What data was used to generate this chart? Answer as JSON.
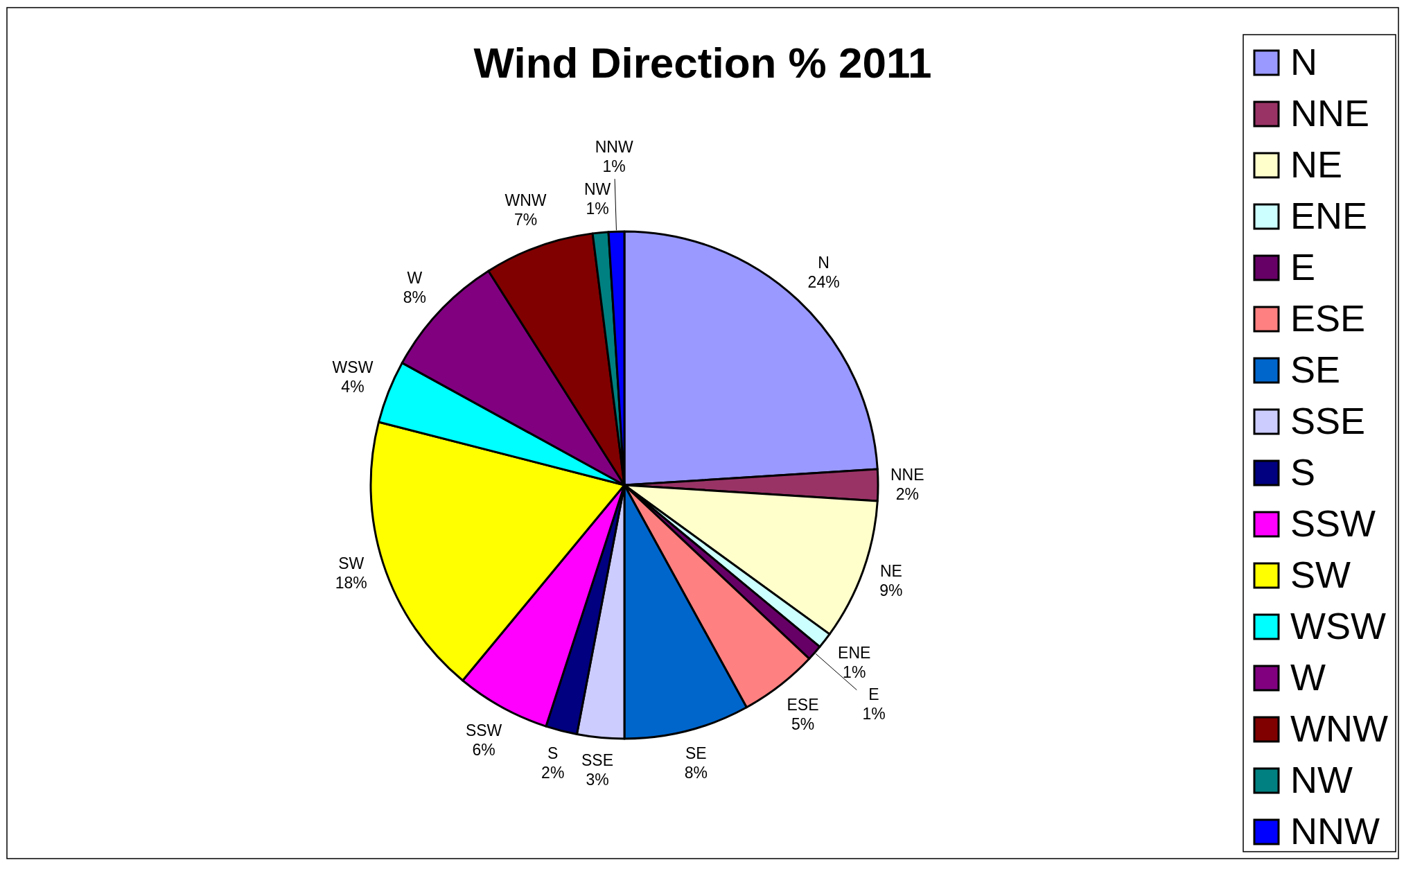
{
  "chart_data": {
    "type": "pie",
    "title": "Wind Direction % 2011",
    "categories": [
      "N",
      "NNE",
      "NE",
      "ENE",
      "E",
      "ESE",
      "SE",
      "SSE",
      "S",
      "SSW",
      "SW",
      "WSW",
      "W",
      "WNW",
      "NW",
      "NNW"
    ],
    "values": [
      24,
      2,
      9,
      1,
      1,
      5,
      8,
      3,
      2,
      6,
      18,
      4,
      8,
      7,
      1,
      1
    ],
    "value_labels": [
      "24%",
      "2%",
      "9%",
      "1%",
      "1%",
      "5%",
      "8%",
      "3%",
      "2%",
      "6%",
      "18%",
      "4%",
      "8%",
      "7%",
      "1%",
      "1%"
    ],
    "colors": [
      "#9999ff",
      "#993366",
      "#ffffcc",
      "#ccffff",
      "#660066",
      "#ff8080",
      "#0066cc",
      "#ccccff",
      "#000080",
      "#ff00ff",
      "#ffff00",
      "#00ffff",
      "#800080",
      "#800000",
      "#008080",
      "#0000ff"
    ],
    "legend": "right"
  }
}
